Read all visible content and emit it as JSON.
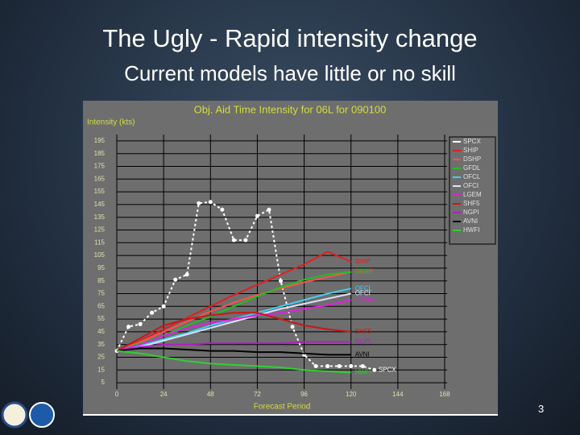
{
  "title": "The Ugly - Rapid intensity change",
  "subtitle": "Current models have little or no skill",
  "page_number": 3,
  "chart_data": {
    "type": "line",
    "title": "Obj. Aid Time Intensity for 06L for 090100",
    "y_label": "Intensity (kts)",
    "x_label": "Forecast Period",
    "xlim": [
      0,
      168
    ],
    "xticks": [
      0,
      24,
      48,
      72,
      96,
      120,
      144,
      168
    ],
    "ylim": [
      0,
      200
    ],
    "yticks": [
      5,
      15,
      25,
      35,
      45,
      55,
      65,
      75,
      85,
      95,
      105,
      115,
      125,
      135,
      145,
      155,
      165,
      175,
      185,
      195
    ],
    "grid": true,
    "legend": "right",
    "series": [
      {
        "name": "SPCX",
        "color": "#ffffff",
        "dashed": true,
        "x": [
          0,
          6,
          12,
          18,
          24,
          30,
          36,
          42,
          48,
          54,
          60,
          66,
          72,
          78,
          84,
          90,
          96,
          102,
          108,
          114,
          120,
          126,
          132
        ],
        "values": [
          30,
          49,
          51,
          60,
          65,
          86,
          90,
          146,
          147,
          141,
          117,
          117,
          136,
          141,
          85,
          49,
          27,
          18,
          18,
          18,
          18,
          18,
          15
        ]
      },
      {
        "name": "SHIP",
        "color": "#e02020",
        "x": [
          0,
          12,
          24,
          36,
          48,
          60,
          72,
          84,
          96,
          108,
          120
        ],
        "values": [
          30,
          38,
          47,
          56,
          65,
          74,
          82,
          90,
          98,
          108,
          100
        ]
      },
      {
        "name": "DSHP",
        "color": "#ff5050",
        "x": [
          0,
          12,
          24,
          36,
          48,
          60,
          72,
          84,
          96,
          108,
          120
        ],
        "values": [
          30,
          37,
          45,
          53,
          61,
          68,
          74,
          79,
          84,
          88,
          92
        ]
      },
      {
        "name": "GFDL",
        "color": "#20c020",
        "x": [
          0,
          12,
          24,
          36,
          48,
          60,
          72,
          84,
          96,
          108,
          120
        ],
        "values": [
          30,
          36,
          42,
          50,
          57,
          65,
          73,
          80,
          86,
          90,
          92
        ]
      },
      {
        "name": "OFCL",
        "color": "#40d0f0",
        "x": [
          0,
          12,
          24,
          36,
          48,
          60,
          72,
          84,
          96,
          108,
          120
        ],
        "values": [
          30,
          34,
          39,
          44,
          50,
          55,
          60,
          65,
          70,
          75,
          79
        ]
      },
      {
        "name": "OFCI",
        "color": "#e0e0ff",
        "x": [
          0,
          12,
          24,
          36,
          48,
          60,
          72,
          84,
          96,
          108,
          120
        ],
        "values": [
          30,
          33,
          38,
          43,
          48,
          53,
          58,
          63,
          67,
          71,
          75
        ]
      },
      {
        "name": "LGEM",
        "color": "#e020e0",
        "x": [
          0,
          12,
          24,
          36,
          48,
          60,
          72,
          84,
          96,
          108,
          120
        ],
        "values": [
          30,
          35,
          42,
          48,
          52,
          55,
          58,
          60,
          63,
          66,
          70
        ]
      },
      {
        "name": "SHF5",
        "color": "#c81818",
        "x": [
          0,
          12,
          24,
          36,
          48,
          60,
          72,
          84,
          96,
          108,
          120
        ],
        "values": [
          30,
          40,
          50,
          55,
          58,
          60,
          60,
          55,
          50,
          47,
          45
        ]
      },
      {
        "name": "NGPI",
        "color": "#b020c0",
        "x": [
          0,
          12,
          24,
          36,
          48,
          60,
          72,
          84,
          96,
          108,
          120
        ],
        "values": [
          30,
          33,
          35,
          35,
          36,
          36,
          36,
          36,
          37,
          37,
          37
        ]
      },
      {
        "name": "AVNI",
        "color": "#000000",
        "x": [
          0,
          12,
          24,
          36,
          48,
          60,
          72,
          84,
          96,
          108,
          120
        ],
        "values": [
          30,
          32,
          32,
          31,
          30,
          30,
          29,
          29,
          28,
          27,
          27
        ]
      },
      {
        "name": "HWFI",
        "color": "#30d030",
        "x": [
          0,
          12,
          24,
          36,
          48,
          60,
          72,
          84,
          96,
          108,
          120
        ],
        "values": [
          30,
          28,
          25,
          22,
          20,
          19,
          18,
          17,
          15,
          14,
          13
        ]
      }
    ]
  }
}
